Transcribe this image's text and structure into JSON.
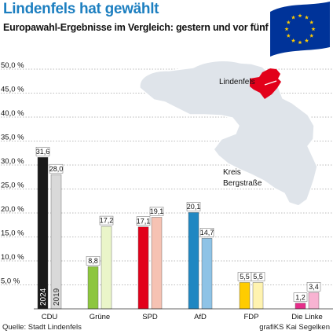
{
  "header": {
    "title": "Lindenfels hat gewählt",
    "subtitle": "Europawahl-Ergebnisse im Vergleich: gestern und vor fünf Jahren"
  },
  "footer": {
    "source": "Quelle: Stadt Lindenfels",
    "credit": "grafiKS Kai Segelken"
  },
  "map": {
    "town_label": "Lindenfels",
    "district_label_line1": "Kreis",
    "district_label_line2": "Bergstraße",
    "town_color": "#e2001a",
    "district_color": "#dfe4ea"
  },
  "flag": {
    "blue": "#003399",
    "stars": "#ffcc00"
  },
  "chart_data": {
    "type": "bar",
    "categories": [
      "CDU",
      "Grüne",
      "SPD",
      "AfD",
      "FDP",
      "Die Linke"
    ],
    "series": [
      {
        "name": "2024",
        "values": [
          31.6,
          8.8,
          17.1,
          20.1,
          5.5,
          1.2
        ]
      },
      {
        "name": "2019",
        "values": [
          28.0,
          17.2,
          19.1,
          14.7,
          5.5,
          3.4
        ]
      }
    ],
    "value_labels": [
      [
        "31,6",
        "8,8",
        "17,1",
        "20,1",
        "5,5",
        "1,2"
      ],
      [
        "28,0",
        "17,2",
        "19,1",
        "14,7",
        "5,5",
        "3,4"
      ]
    ],
    "colors": [
      [
        "#1a1a1a",
        "#8dc63f",
        "#e2001a",
        "#1f87c2",
        "#ffcc00",
        "#e62e8a"
      ],
      [
        "#d9d9d9",
        "#eaf5c9",
        "#f6c2b3",
        "#8ec3e6",
        "#fff3b0",
        "#f8b3d2"
      ]
    ],
    "y_ticks": [
      "5,0 %",
      "10,0 %",
      "15,0 %",
      "20,0 %",
      "25,0 %",
      "30,0 %",
      "35,0 %",
      "40,0 %",
      "45,0 %",
      "50,0 %"
    ],
    "y_tick_values": [
      5,
      10,
      15,
      20,
      25,
      30,
      35,
      40,
      45,
      50
    ],
    "ylim": [
      0,
      50
    ],
    "grid": true
  }
}
